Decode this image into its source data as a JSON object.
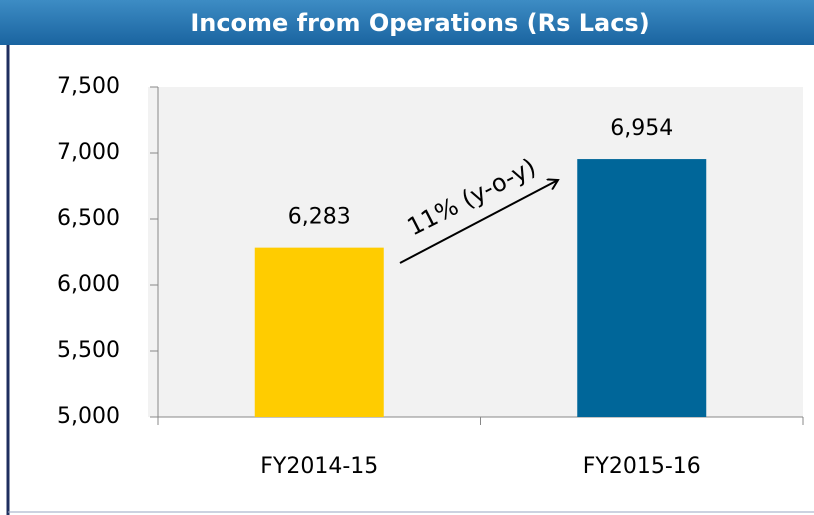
{
  "chart_data": {
    "type": "bar",
    "title": "Income from Operations (Rs Lacs)",
    "categories": [
      "FY2014-15",
      "FY2015-16"
    ],
    "values": [
      6283,
      6954
    ],
    "value_labels": [
      "6,283",
      "6,954"
    ],
    "colors": [
      "#ffcc00",
      "#006699"
    ],
    "ylim": [
      5000,
      7500
    ],
    "yticks": [
      {
        "value": 5000,
        "label": "5,000"
      },
      {
        "value": 5500,
        "label": "5,500"
      },
      {
        "value": 6000,
        "label": "6,000"
      },
      {
        "value": 6500,
        "label": "6,500"
      },
      {
        "value": 7000,
        "label": "7,000"
      },
      {
        "value": 7500,
        "label": "7,500"
      }
    ],
    "grid": false,
    "annotation": "11% (y-o-y)"
  }
}
